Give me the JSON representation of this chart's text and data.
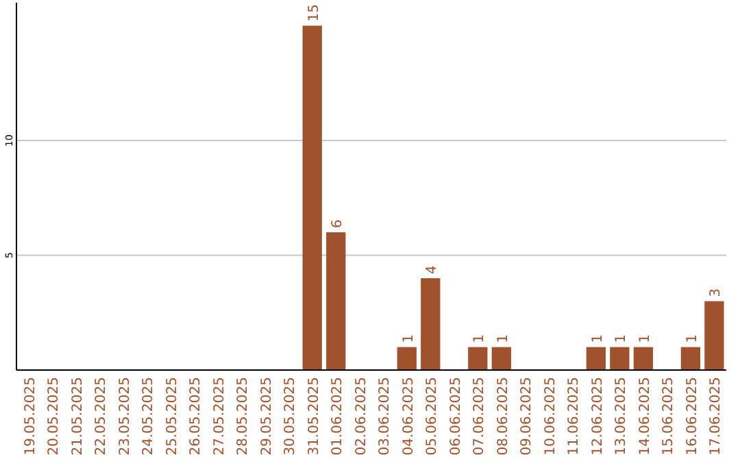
{
  "chart_data": {
    "type": "bar",
    "categories": [
      "19.05.2025",
      "20.05.2025",
      "21.05.2025",
      "22.05.2025",
      "23.05.2025",
      "24.05.2025",
      "25.05.2025",
      "26.05.2025",
      "27.05.2025",
      "28.05.2025",
      "29.05.2025",
      "30.05.2025",
      "31.05.2025",
      "01.06.2025",
      "02.06.2025",
      "03.06.2025",
      "04.06.2025",
      "05.06.2025",
      "06.06.2025",
      "07.06.2025",
      "08.06.2025",
      "09.06.2025",
      "10.06.2025",
      "11.06.2025",
      "12.06.2025",
      "13.06.2025",
      "14.06.2025",
      "15.06.2025",
      "16.06.2025",
      "17.06.2025"
    ],
    "values": [
      0,
      0,
      0,
      0,
      0,
      0,
      0,
      0,
      0,
      0,
      0,
      0,
      15,
      6,
      0,
      0,
      1,
      4,
      0,
      1,
      1,
      0,
      0,
      0,
      1,
      1,
      1,
      0,
      1,
      3
    ],
    "value_labels": [
      null,
      null,
      null,
      null,
      null,
      null,
      null,
      null,
      null,
      null,
      null,
      null,
      "15",
      "6",
      null,
      null,
      "1",
      "4",
      null,
      "1",
      "1",
      null,
      null,
      null,
      "1",
      "1",
      "1",
      null,
      "1",
      "3"
    ],
    "color": "#a0522d",
    "ylim": [
      0,
      16
    ],
    "yticks": [
      5,
      10
    ],
    "grid": "y"
  }
}
